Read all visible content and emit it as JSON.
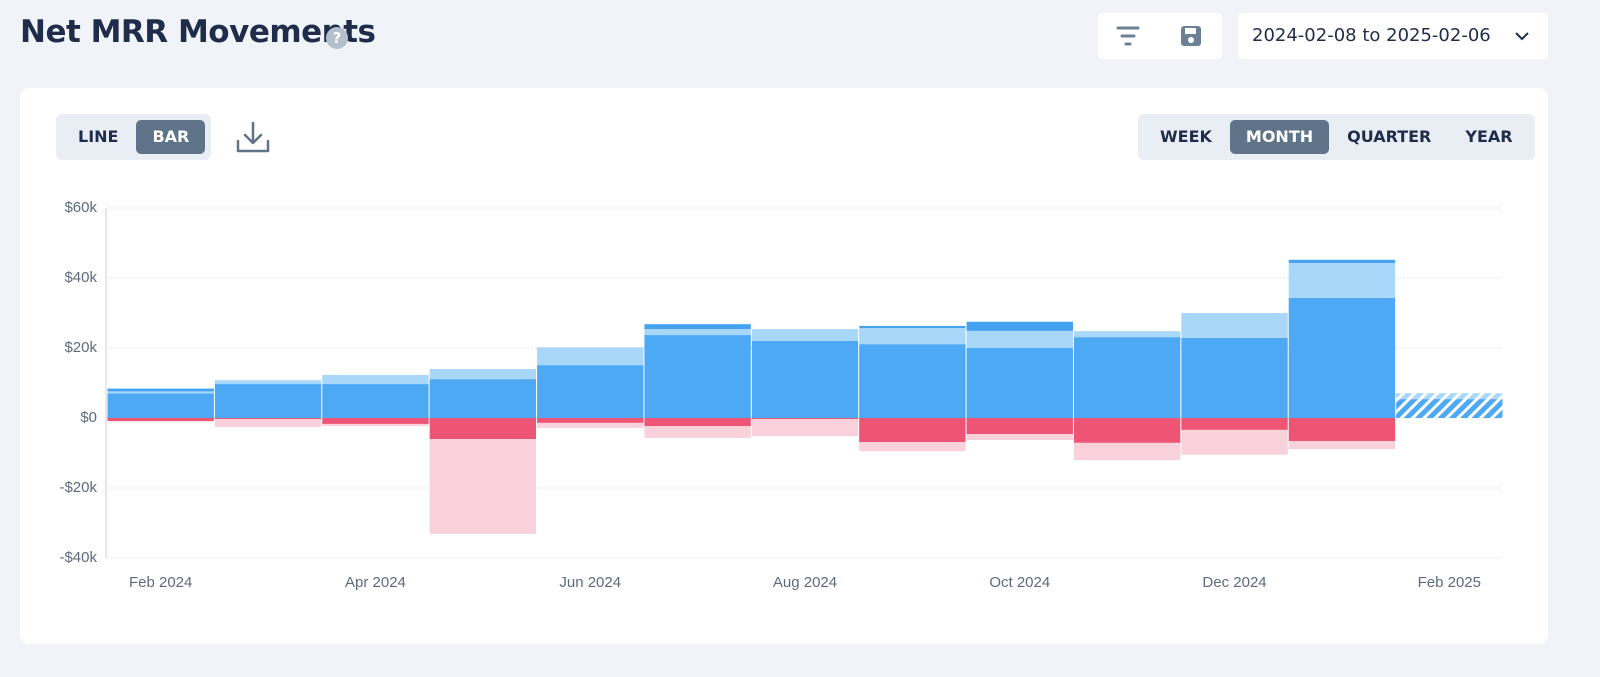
{
  "header": {
    "title": "Net MRR Movements",
    "help": "?",
    "date_range": "2024-02-08 to 2025-02-06"
  },
  "controls": {
    "chart_types": [
      "LINE",
      "BAR"
    ],
    "intervals": [
      "WEEK",
      "MONTH",
      "QUARTER",
      "YEAR"
    ]
  },
  "chart_data": {
    "type": "bar",
    "stacked": true,
    "grid": true,
    "categories": [
      "Feb 2024",
      null,
      "Apr 2024",
      null,
      "Jun 2024",
      null,
      "Aug 2024",
      null,
      "Oct 2024",
      null,
      "Dec 2024",
      null,
      "Feb 2025"
    ],
    "series": [
      {
        "color": "#4da9f4",
        "values": [
          7000,
          9700,
          9700,
          11100,
          15100,
          23700,
          22000,
          21100,
          20000,
          23100,
          22900,
          34300,
          5400
        ]
      },
      {
        "color": "#a9d7fa",
        "values": [
          600,
          1100,
          2600,
          2900,
          5100,
          1700,
          3400,
          4600,
          4900,
          1700,
          7100,
          10000,
          1700
        ]
      },
      {
        "color": "#45a2f0",
        "values": [
          800,
          0,
          0,
          0,
          0,
          1400,
          0,
          600,
          2600,
          0,
          0,
          900,
          0
        ]
      },
      {
        "color": "#ee5473",
        "values": [
          -900,
          -300,
          -1700,
          -6000,
          -1400,
          -2300,
          -300,
          -6900,
          -4600,
          -7100,
          -3400,
          -6600,
          0
        ]
      },
      {
        "color": "#f8d1da",
        "values": [
          0,
          -2300,
          -600,
          -27100,
          -1400,
          -3400,
          -4900,
          -2600,
          -1700,
          -4900,
          -7100,
          -2300,
          0
        ]
      }
    ],
    "ylim": [
      -40000,
      60000
    ],
    "yticks": [
      {
        "value": -40000,
        "label": "-$40k"
      },
      {
        "value": -20000,
        "label": "-$20k"
      },
      {
        "value": 0,
        "label": "$0"
      },
      {
        "value": 20000,
        "label": "$20k"
      },
      {
        "value": 40000,
        "label": "$40k"
      },
      {
        "value": 60000,
        "label": "$60k"
      }
    ]
  }
}
